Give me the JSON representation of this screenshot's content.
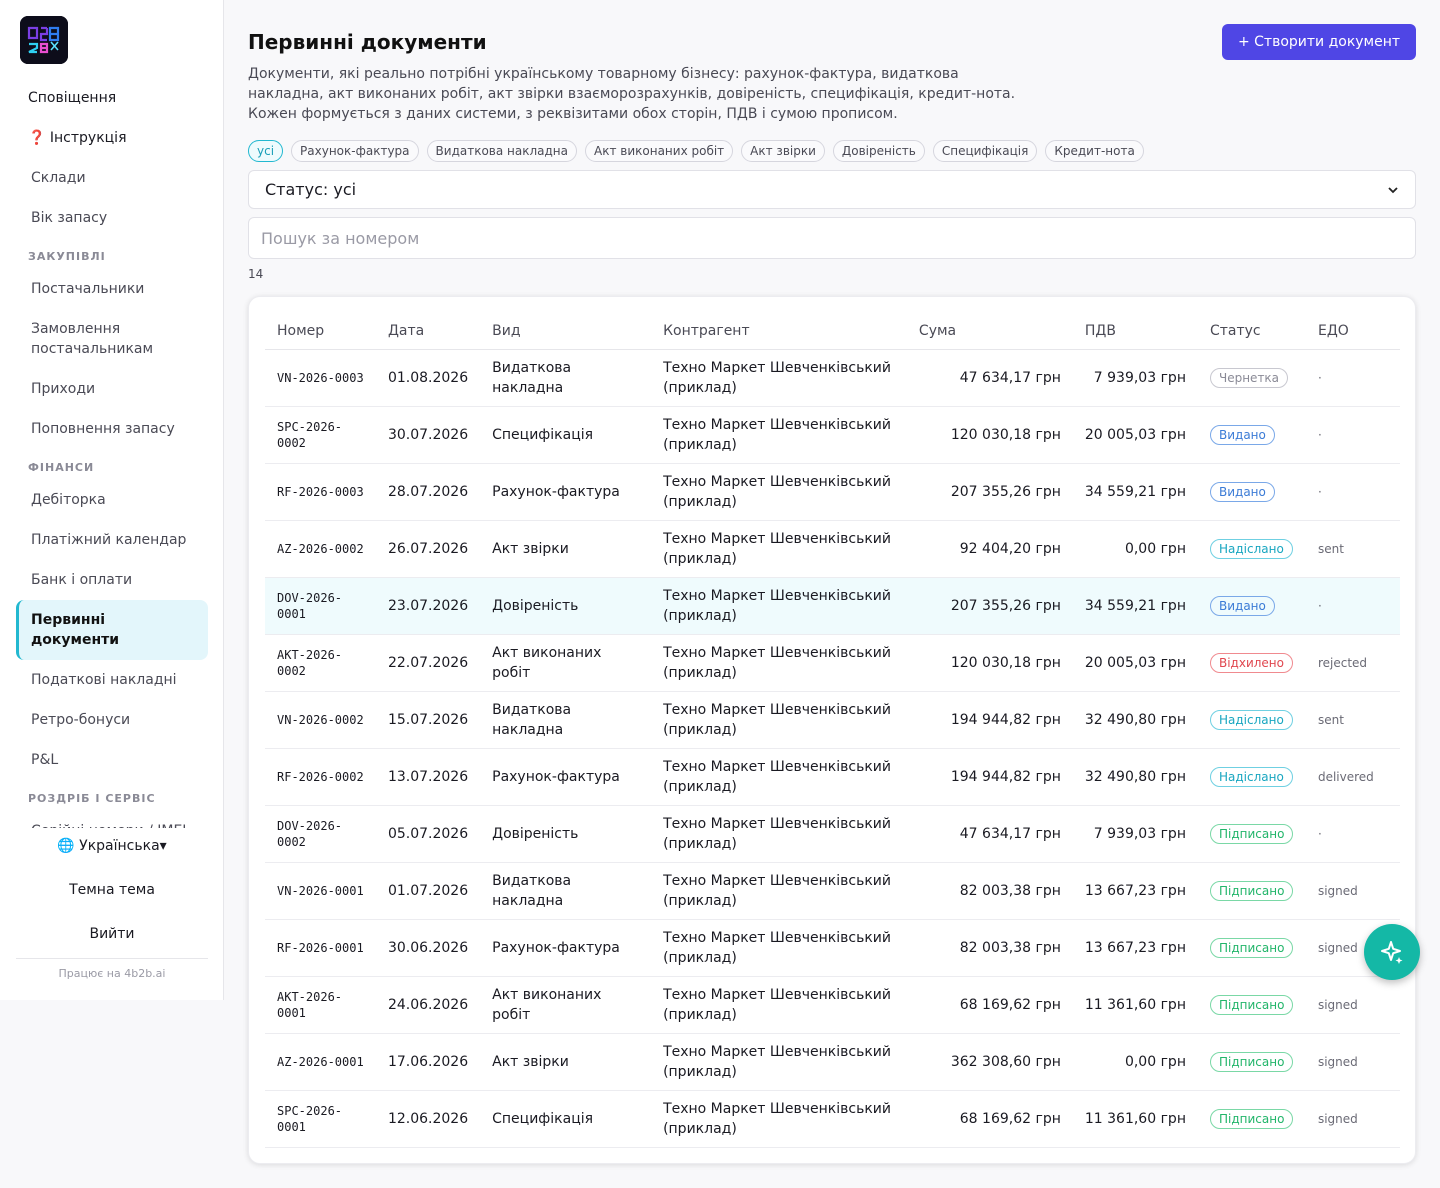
{
  "sidebar": {
    "items": [
      {
        "label": "Сповіщення",
        "type": "top"
      },
      {
        "label": "❓ Інструкція",
        "type": "top"
      },
      {
        "label": "Склади",
        "type": "item"
      },
      {
        "label": "Вік запасу",
        "type": "item"
      },
      {
        "label": "ЗАКУПІВЛІ",
        "type": "section"
      },
      {
        "label": "Постачальники",
        "type": "item"
      },
      {
        "label": "Замовлення постачальникам",
        "type": "item"
      },
      {
        "label": "Приходи",
        "type": "item"
      },
      {
        "label": "Поповнення запасу",
        "type": "item"
      },
      {
        "label": "ФІНАНСИ",
        "type": "section"
      },
      {
        "label": "Дебіторка",
        "type": "item"
      },
      {
        "label": "Платіжний календар",
        "type": "item"
      },
      {
        "label": "Банк і оплати",
        "type": "item"
      },
      {
        "label": "Первинні документи",
        "type": "active"
      },
      {
        "label": "Податкові накладні",
        "type": "item"
      },
      {
        "label": "Ретро-бонуси",
        "type": "item"
      },
      {
        "label": "P&L",
        "type": "item"
      },
      {
        "label": "РОЗДРІБ І СЕРВІС",
        "type": "section"
      },
      {
        "label": "Серійні номери / IMEI",
        "type": "item"
      }
    ],
    "language": "🌐 Українська▾",
    "theme": "Темна тема",
    "logout": "Вийти",
    "powered": "Працює на 4b2b.ai"
  },
  "header": {
    "title": "Первинні документи",
    "create_button": "+ Створити документ",
    "description": "Документи, які реально потрібні українському товарному бізнесу: рахунок-фактура, видаткова накладна, акт виконаних робіт, акт звірки взаєморозрахунків, довіреність, специфікація, кредит-нота. Кожен формується з даних системи, з реквізитами обох сторін, ПДВ і сумою прописом."
  },
  "filters": {
    "chips": [
      "усі",
      "Рахунок-фактура",
      "Видаткова накладна",
      "Акт виконаних робіт",
      "Акт звірки",
      "Довіреність",
      "Специфікація",
      "Кредит-нота"
    ],
    "active_chip": 0,
    "status_select": "Статус: усі",
    "search_placeholder": "Пошук за номером",
    "count": "14"
  },
  "table": {
    "columns": [
      "Номер",
      "Дата",
      "Вид",
      "Контрагент",
      "Сума",
      "ПДВ",
      "Статус",
      "ЕДО"
    ],
    "rows": [
      {
        "number": "VN-2026-0003",
        "date": "01.08.2026",
        "kind": "Видаткова накладна",
        "party": "Техно Маркет Шевченківський (приклад)",
        "sum": "47 634,17 грн",
        "vat": "7 939,03 грн",
        "status": "Чернетка",
        "status_kind": "draft",
        "edo": "·"
      },
      {
        "number": "SPC-2026-0002",
        "date": "30.07.2026",
        "kind": "Специфікація",
        "party": "Техно Маркет Шевченківський (приклад)",
        "sum": "120 030,18 грн",
        "vat": "20 005,03 грн",
        "status": "Видано",
        "status_kind": "issued",
        "edo": "·"
      },
      {
        "number": "RF-2026-0003",
        "date": "28.07.2026",
        "kind": "Рахунок-фактура",
        "party": "Техно Маркет Шевченківський (приклад)",
        "sum": "207 355,26 грн",
        "vat": "34 559,21 грн",
        "status": "Видано",
        "status_kind": "issued",
        "edo": "·"
      },
      {
        "number": "AZ-2026-0002",
        "date": "26.07.2026",
        "kind": "Акт звірки",
        "party": "Техно Маркет Шевченківський (приклад)",
        "sum": "92 404,20 грн",
        "vat": "0,00 грн",
        "status": "Надіслано",
        "status_kind": "sent",
        "edo": "sent"
      },
      {
        "number": "DOV-2026-0001",
        "date": "23.07.2026",
        "kind": "Довіреність",
        "party": "Техно Маркет Шевченківський (приклад)",
        "sum": "207 355,26 грн",
        "vat": "34 559,21 грн",
        "status": "Видано",
        "status_kind": "issued",
        "edo": "·",
        "highlight": true
      },
      {
        "number": "AKT-2026-0002",
        "date": "22.07.2026",
        "kind": "Акт виконаних робіт",
        "party": "Техно Маркет Шевченківський (приклад)",
        "sum": "120 030,18 грн",
        "vat": "20 005,03 грн",
        "status": "Відхилено",
        "status_kind": "rejected",
        "edo": "rejected"
      },
      {
        "number": "VN-2026-0002",
        "date": "15.07.2026",
        "kind": "Видаткова накладна",
        "party": "Техно Маркет Шевченківський (приклад)",
        "sum": "194 944,82 грн",
        "vat": "32 490,80 грн",
        "status": "Надіслано",
        "status_kind": "sent",
        "edo": "sent"
      },
      {
        "number": "RF-2026-0002",
        "date": "13.07.2026",
        "kind": "Рахунок-фактура",
        "party": "Техно Маркет Шевченківський (приклад)",
        "sum": "194 944,82 грн",
        "vat": "32 490,80 грн",
        "status": "Надіслано",
        "status_kind": "sent",
        "edo": "delivered"
      },
      {
        "number": "DOV-2026-0002",
        "date": "05.07.2026",
        "kind": "Довіреність",
        "party": "Техно Маркет Шевченківський (приклад)",
        "sum": "47 634,17 грн",
        "vat": "7 939,03 грн",
        "status": "Підписано",
        "status_kind": "signed",
        "edo": "·"
      },
      {
        "number": "VN-2026-0001",
        "date": "01.07.2026",
        "kind": "Видаткова накладна",
        "party": "Техно Маркет Шевченківський (приклад)",
        "sum": "82 003,38 грн",
        "vat": "13 667,23 грн",
        "status": "Підписано",
        "status_kind": "signed",
        "edo": "signed"
      },
      {
        "number": "RF-2026-0001",
        "date": "30.06.2026",
        "kind": "Рахунок-фактура",
        "party": "Техно Маркет Шевченківський (приклад)",
        "sum": "82 003,38 грн",
        "vat": "13 667,23 грн",
        "status": "Підписано",
        "status_kind": "signed",
        "edo": "signed"
      },
      {
        "number": "AKT-2026-0001",
        "date": "24.06.2026",
        "kind": "Акт виконаних робіт",
        "party": "Техно Маркет Шевченківський (приклад)",
        "sum": "68 169,62 грн",
        "vat": "11 361,60 грн",
        "status": "Підписано",
        "status_kind": "signed",
        "edo": "signed"
      },
      {
        "number": "AZ-2026-0001",
        "date": "17.06.2026",
        "kind": "Акт звірки",
        "party": "Техно Маркет Шевченківський (приклад)",
        "sum": "362 308,60 грн",
        "vat": "0,00 грн",
        "status": "Підписано",
        "status_kind": "signed",
        "edo": "signed"
      },
      {
        "number": "SPC-2026-0001",
        "date": "12.06.2026",
        "kind": "Специфікація",
        "party": "Техно Маркет Шевченківський (приклад)",
        "sum": "68 169,62 грн",
        "vat": "11 361,60 грн",
        "status": "Підписано",
        "status_kind": "signed",
        "edo": "signed"
      }
    ]
  },
  "assistant_button": {
    "icon": "sparkle-icon"
  },
  "colors": {
    "accent": "#4f46e5",
    "teal": "#14b8a6",
    "active_bg": "#e3f6fb"
  }
}
